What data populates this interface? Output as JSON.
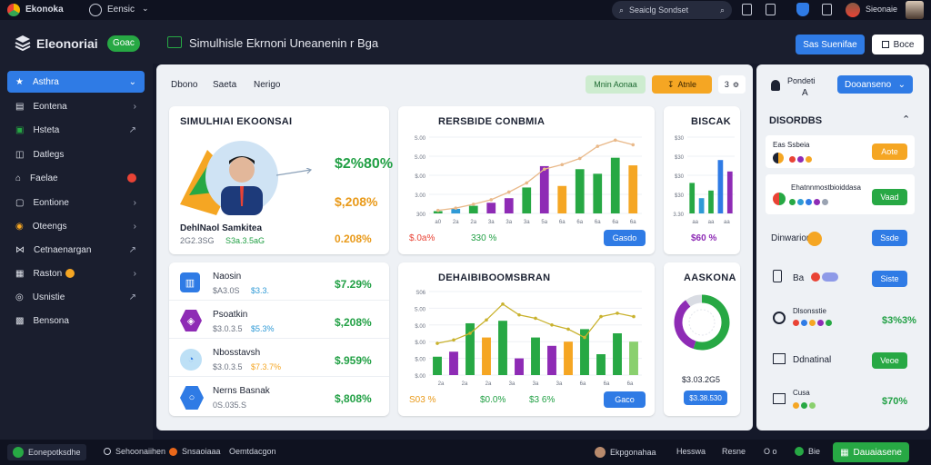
{
  "topbar": {
    "app_name": "Ekonoka",
    "menu_label": "Eensic",
    "search_placeholder": "Seaiclg Sondset",
    "user_name": "Sieonaie"
  },
  "header": {
    "brand": "Eleonoriai",
    "brand_badge": "Goac",
    "title": "Simulhisle Ekrnoni Uneanenin r Bga",
    "primary_button": "Sas Suenifae",
    "secondary_button": "Boce"
  },
  "sidebar": {
    "items": [
      {
        "label": "Asthra",
        "icon": "star-icon"
      },
      {
        "label": "Eontena",
        "icon": "table-icon"
      },
      {
        "label": "Hsteta",
        "icon": "wallet-icon"
      },
      {
        "label": "Datlegs",
        "icon": "chart-icon"
      },
      {
        "label": "Faelae",
        "icon": "home-icon"
      },
      {
        "label": "Eontione",
        "icon": "document-icon"
      },
      {
        "label": "Oteengs",
        "icon": "globe-icon"
      },
      {
        "label": "Cetnaenargan",
        "icon": "share-icon"
      },
      {
        "label": "Raston",
        "icon": "calendar-icon"
      },
      {
        "label": "Usnistie",
        "icon": "user-icon"
      },
      {
        "label": "Bensona",
        "icon": "grid-icon"
      }
    ]
  },
  "main": {
    "tabs": [
      "Dbono",
      "Saeta",
      "Nerigo"
    ],
    "filter_green": "Mnin Aonaa",
    "filter_orange": "Atnle",
    "filter_num": "3",
    "profile_card": {
      "title": "SIMULHIAI EKOONSAI",
      "value_1": "$2%80%",
      "value_2": "$,208%",
      "footer_title": "DehlNaol Samkitea",
      "footer_sub": "2G2.3SG",
      "footer_green": "S3a.3.5aG",
      "footer_right": "0.208%"
    },
    "bar_card": {
      "title": "RERSBIDE CONBMIA",
      "y_ticks": [
        "S.00",
        "S.00",
        "$.00",
        "3.00",
        "300"
      ],
      "x_ticks": [
        "a0",
        "2a",
        "2a",
        "3a",
        "3a",
        "3a",
        "5a",
        "6a",
        "6a",
        "6a",
        "6a",
        "6a"
      ],
      "foot_left": "$.0a%",
      "foot_mid": "330 %",
      "button": "Gasdo"
    },
    "small_bar_card": {
      "title": "BISCAK",
      "y_ticks": [
        "$30",
        "$30",
        "$30",
        "$30",
        "3.30"
      ],
      "x_ticks": [
        "aa",
        "aa",
        "aa"
      ],
      "foot": "$60 %"
    },
    "list_card": {
      "items": [
        {
          "name": "Naosin",
          "sub": "$A3.0S",
          "sub_accent": "$3.3.",
          "value": "$7.29%",
          "icon": "building-icon"
        },
        {
          "name": "Psoatkin",
          "sub": "$3.0.3.5",
          "sub_accent": "$5.3%",
          "value": "$,208%",
          "icon": "hexagon-icon"
        },
        {
          "name": "Nbosstavsh",
          "sub": "$3.0.3.5",
          "sub_accent": "$7.3.7%",
          "value": "$.959%",
          "icon": "gauge-icon"
        },
        {
          "name": "Nerns Basnak",
          "sub": "0S.035.S",
          "sub_accent": "",
          "value": "$,808%",
          "icon": "shield-icon"
        }
      ]
    },
    "combo_card": {
      "title": "DEHAIBIBOOMSBRAN",
      "y_ticks": [
        "S06",
        "S.00",
        "$.00",
        "$.00",
        "$.00",
        "$.00"
      ],
      "x_ticks": [
        "2a",
        "2a",
        "2a",
        "3a",
        "3a",
        "3a",
        "6a",
        "6a",
        "6a"
      ],
      "foot_left": "S03 %",
      "foot_mid": "$0.0%",
      "foot_right": "$3 6%",
      "button": "Gaco"
    },
    "donut_card": {
      "title": "AASKONA",
      "value": "$3.03.2G5",
      "button": "$3.38.530"
    }
  },
  "right": {
    "user_label": "Pondeti",
    "user_sub": "A",
    "dropdown": "Dooanseno",
    "section_title": "DISORDBS",
    "rows": [
      {
        "label": "Eas Ssbeia",
        "button": "Aote",
        "button_color": "#f5a623"
      },
      {
        "label": "Ehatnnmostbioiddasa",
        "button": "Vaad",
        "button_color": "#27a844"
      },
      {
        "label": "Dinwarion",
        "button": "Ssde",
        "button_color": "#2f7be5"
      },
      {
        "label": "Ba",
        "button": "Siste",
        "button_color": "#2f7be5"
      },
      {
        "label": "Dlsonsstie",
        "value": "$3%3%"
      },
      {
        "label": "Ddnatinal",
        "button": "Veoe",
        "button_color": "#27a844"
      },
      {
        "label": "Cusa",
        "value": "$70%"
      }
    ]
  },
  "footer": {
    "left_1": "Eonepotksdhe",
    "left_2": "Sehoonaiihen",
    "left_3": "Snsaoiaaa",
    "left_4": "Oemtdacgon",
    "right_1": "Ekpgonahaa",
    "right_2": "Hesswa",
    "right_3": "Resne",
    "right_4": "O o",
    "right_5": "Bie",
    "cta": "Dauaiasene"
  },
  "chart_data": [
    {
      "type": "bar",
      "title": "RERSBIDE CONBMIA",
      "categories": [
        "1",
        "2",
        "3",
        "4",
        "5",
        "6",
        "7",
        "8",
        "9",
        "10",
        "11",
        "12"
      ],
      "values": [
        3,
        6,
        10,
        14,
        20,
        34,
        62,
        36,
        58,
        52,
        73,
        63
      ],
      "colors": [
        "#27a844",
        "#2f9ad6",
        "#27a844",
        "#8e2bb5",
        "#8e2bb5",
        "#27a844",
        "#8e2bb5",
        "#f5a623",
        "#27a844",
        "#27a844",
        "#27a844",
        "#f5a623"
      ],
      "trend": [
        4,
        7,
        12,
        18,
        28,
        40,
        58,
        64,
        72,
        88,
        96,
        90
      ],
      "ylim": [
        0,
        100
      ]
    },
    {
      "type": "bar",
      "title": "BISCAK",
      "categories": [
        "1",
        "2",
        "3",
        "4",
        "5"
      ],
      "values": [
        40,
        20,
        30,
        70,
        55
      ],
      "colors": [
        "#27a844",
        "#2f9ad6",
        "#27a844",
        "#2f7be5",
        "#8e2bb5"
      ],
      "ylim": [
        0,
        100
      ]
    },
    {
      "type": "bar",
      "title": "DEHAIBIBOOMSBRAN",
      "categories": [
        "1",
        "2",
        "3",
        "4",
        "5",
        "6",
        "7",
        "8",
        "9",
        "10",
        "11",
        "12",
        "13"
      ],
      "values": [
        22,
        28,
        62,
        45,
        65,
        20,
        45,
        35,
        40,
        55,
        25,
        50,
        40
      ],
      "colors": [
        "#27a844",
        "#8e2bb5",
        "#27a844",
        "#f5a623",
        "#27a844",
        "#8e2bb5",
        "#27a844",
        "#8e2bb5",
        "#f5a623",
        "#27a844",
        "#27a844",
        "#27a844",
        "#8ad06e"
      ],
      "trend": [
        38,
        42,
        50,
        66,
        85,
        72,
        68,
        60,
        55,
        45,
        70,
        74,
        70
      ],
      "ylim": [
        0,
        100
      ]
    },
    {
      "type": "pie",
      "title": "AASKONA",
      "values": [
        55,
        35,
        10
      ],
      "colors": [
        "#27a844",
        "#8e2bb5",
        "#d9dce3"
      ]
    }
  ]
}
